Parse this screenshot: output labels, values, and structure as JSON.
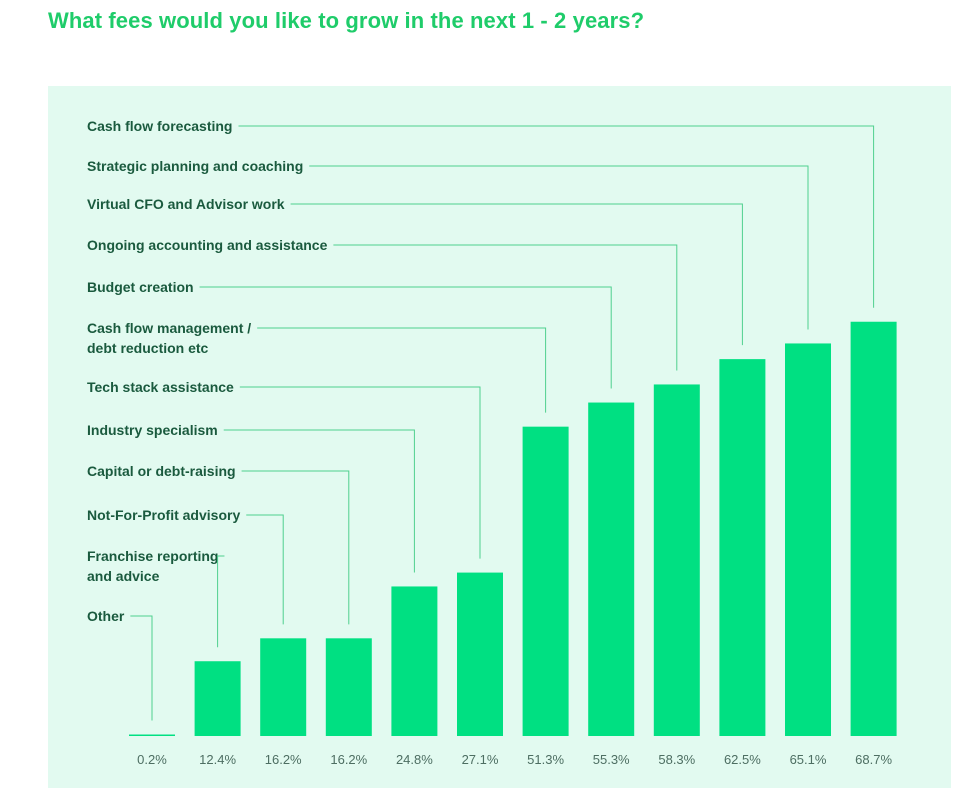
{
  "title": "What fees would you like to grow in the next 1 - 2 years?",
  "colors": {
    "title": "#1fcc6a",
    "bar": "#00e082",
    "panel": "#e2faf0",
    "leader": "#4fd08e"
  },
  "chart_data": {
    "type": "bar",
    "categories": [
      "Other",
      "Franchise reporting and advice",
      "Not-For-Profit advisory",
      "Capital or debt-raising",
      "Industry specialism",
      "Tech stack assistance",
      "Cash flow management / debt reduction etc",
      "Budget creation",
      "Ongoing accounting and assistance",
      "Virtual CFO and Advisor work",
      "Strategic planning and coaching",
      "Cash flow forecasting"
    ],
    "category_lines": [
      [
        "Other"
      ],
      [
        "Franchise reporting",
        "and advice"
      ],
      [
        "Not-For-Profit advisory"
      ],
      [
        "Capital or debt-raising"
      ],
      [
        "Industry specialism"
      ],
      [
        "Tech stack assistance"
      ],
      [
        "Cash flow management /",
        "debt reduction etc"
      ],
      [
        "Budget creation"
      ],
      [
        "Ongoing accounting and assistance"
      ],
      [
        "Virtual CFO and Advisor work"
      ],
      [
        "Strategic planning and coaching"
      ],
      [
        "Cash flow forecasting"
      ]
    ],
    "values": [
      0.2,
      12.4,
      16.2,
      16.2,
      24.8,
      27.1,
      51.3,
      55.3,
      58.3,
      62.5,
      65.1,
      68.7
    ],
    "value_labels": [
      "0.2%",
      "12.4%",
      "16.2%",
      "16.2%",
      "24.8%",
      "27.1%",
      "51.3%",
      "55.3%",
      "58.3%",
      "62.5%",
      "65.1%",
      "68.7%"
    ],
    "ylim": [
      0,
      70
    ],
    "grid": false,
    "legend": "none"
  }
}
